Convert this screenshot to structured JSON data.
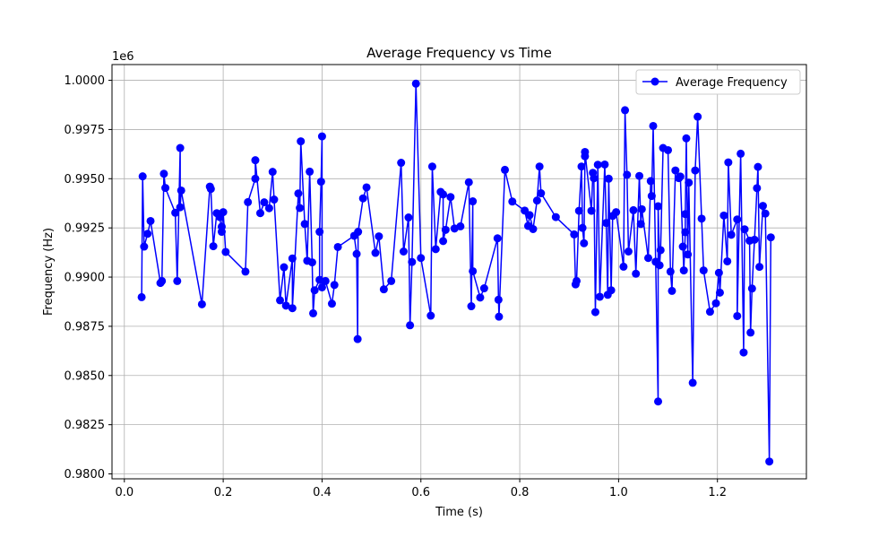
{
  "chart_data": {
    "type": "line",
    "title": "Average Frequency vs Time",
    "xlabel": "Time (s)",
    "ylabel": "Frequency (Hz)",
    "y_offset_label": "1e6",
    "xlim": [
      -0.025,
      1.38
    ],
    "ylim": [
      979750,
      1000800
    ],
    "x_ticks": [
      0.0,
      0.2,
      0.4,
      0.6,
      0.8,
      1.0,
      1.2
    ],
    "x_tick_labels": [
      "0.0",
      "0.2",
      "0.4",
      "0.6",
      "0.8",
      "1.0",
      "1.2"
    ],
    "y_ticks": [
      980000,
      982500,
      985000,
      987500,
      990000,
      992500,
      995000,
      997500,
      1000000
    ],
    "y_tick_labels": [
      "0.9800",
      "0.9825",
      "0.9850",
      "0.9875",
      "0.9900",
      "0.9925",
      "0.9950",
      "0.9975",
      "1.0000"
    ],
    "grid": true,
    "legend_position": "top-right",
    "series": [
      {
        "name": "Average Frequency",
        "color": "#0000ff",
        "marker": "circle",
        "points": [
          [
            0.035,
            988980
          ],
          [
            0.037,
            995120
          ],
          [
            0.04,
            991550
          ],
          [
            0.047,
            992200
          ],
          [
            0.053,
            992850
          ],
          [
            0.073,
            989700
          ],
          [
            0.076,
            989800
          ],
          [
            0.08,
            995250
          ],
          [
            0.083,
            994530
          ],
          [
            0.103,
            993270
          ],
          [
            0.107,
            989800
          ],
          [
            0.113,
            996560
          ],
          [
            0.113,
            993550
          ],
          [
            0.115,
            994400
          ],
          [
            0.157,
            988620
          ],
          [
            0.173,
            994600
          ],
          [
            0.175,
            994480
          ],
          [
            0.18,
            991570
          ],
          [
            0.187,
            993250
          ],
          [
            0.193,
            993050
          ],
          [
            0.197,
            992300
          ],
          [
            0.197,
            992560
          ],
          [
            0.2,
            993300
          ],
          [
            0.205,
            991280
          ],
          [
            0.245,
            990280
          ],
          [
            0.25,
            993810
          ],
          [
            0.265,
            995000
          ],
          [
            0.265,
            995940
          ],
          [
            0.275,
            993250
          ],
          [
            0.283,
            993800
          ],
          [
            0.293,
            993500
          ],
          [
            0.3,
            995350
          ],
          [
            0.303,
            993940
          ],
          [
            0.315,
            988820
          ],
          [
            0.323,
            990500
          ],
          [
            0.327,
            988550
          ],
          [
            0.34,
            990950
          ],
          [
            0.34,
            988420
          ],
          [
            0.352,
            994250
          ],
          [
            0.355,
            993510
          ],
          [
            0.357,
            996900
          ],
          [
            0.365,
            992700
          ],
          [
            0.37,
            990830
          ],
          [
            0.375,
            995360
          ],
          [
            0.38,
            990750
          ],
          [
            0.382,
            988160
          ],
          [
            0.385,
            989330
          ],
          [
            0.395,
            989860
          ],
          [
            0.395,
            992300
          ],
          [
            0.398,
            994850
          ],
          [
            0.4,
            997150
          ],
          [
            0.4,
            989480
          ],
          [
            0.407,
            989800
          ],
          [
            0.42,
            988650
          ],
          [
            0.425,
            989600
          ],
          [
            0.432,
            991530
          ],
          [
            0.465,
            992100
          ],
          [
            0.47,
            991180
          ],
          [
            0.472,
            986850
          ],
          [
            0.473,
            992300
          ],
          [
            0.483,
            994000
          ],
          [
            0.49,
            994560
          ],
          [
            0.508,
            991230
          ],
          [
            0.515,
            992070
          ],
          [
            0.525,
            989380
          ],
          [
            0.54,
            989800
          ],
          [
            0.56,
            995810
          ],
          [
            0.565,
            991300
          ],
          [
            0.575,
            993030
          ],
          [
            0.578,
            987550
          ],
          [
            0.582,
            990770
          ],
          [
            0.59,
            999830
          ],
          [
            0.6,
            990970
          ],
          [
            0.62,
            988040
          ],
          [
            0.623,
            995620
          ],
          [
            0.63,
            991420
          ],
          [
            0.64,
            994330
          ],
          [
            0.645,
            994200
          ],
          [
            0.645,
            991830
          ],
          [
            0.65,
            992400
          ],
          [
            0.66,
            994070
          ],
          [
            0.668,
            992470
          ],
          [
            0.68,
            992580
          ],
          [
            0.697,
            994820
          ],
          [
            0.702,
            988520
          ],
          [
            0.705,
            993850
          ],
          [
            0.705,
            990300
          ],
          [
            0.72,
            988960
          ],
          [
            0.728,
            989430
          ],
          [
            0.755,
            991970
          ],
          [
            0.757,
            988850
          ],
          [
            0.758,
            987990
          ],
          [
            0.77,
            995450
          ],
          [
            0.785,
            993840
          ],
          [
            0.81,
            993380
          ],
          [
            0.817,
            992600
          ],
          [
            0.82,
            993150
          ],
          [
            0.827,
            992440
          ],
          [
            0.835,
            993890
          ],
          [
            0.84,
            995620
          ],
          [
            0.843,
            994260
          ],
          [
            0.873,
            993050
          ],
          [
            0.91,
            992170
          ],
          [
            0.913,
            989630
          ],
          [
            0.915,
            989800
          ],
          [
            0.92,
            993370
          ],
          [
            0.925,
            995620
          ],
          [
            0.927,
            992500
          ],
          [
            0.93,
            991720
          ],
          [
            0.932,
            996140
          ],
          [
            0.932,
            996360
          ],
          [
            0.945,
            993370
          ],
          [
            0.948,
            995300
          ],
          [
            0.95,
            995020
          ],
          [
            0.953,
            988220
          ],
          [
            0.958,
            995710
          ],
          [
            0.962,
            989000
          ],
          [
            0.972,
            995720
          ],
          [
            0.975,
            992750
          ],
          [
            0.978,
            989100
          ],
          [
            0.98,
            995000
          ],
          [
            0.985,
            989330
          ],
          [
            0.988,
            993110
          ],
          [
            0.995,
            993300
          ],
          [
            1.01,
            990530
          ],
          [
            1.013,
            998480
          ],
          [
            1.017,
            995200
          ],
          [
            1.02,
            991300
          ],
          [
            1.03,
            993400
          ],
          [
            1.035,
            990170
          ],
          [
            1.042,
            995140
          ],
          [
            1.045,
            992700
          ],
          [
            1.047,
            993450
          ],
          [
            1.06,
            990970
          ],
          [
            1.065,
            994880
          ],
          [
            1.067,
            994120
          ],
          [
            1.07,
            997680
          ],
          [
            1.075,
            990780
          ],
          [
            1.08,
            983680
          ],
          [
            1.08,
            993600
          ],
          [
            1.083,
            990600
          ],
          [
            1.085,
            991370
          ],
          [
            1.09,
            996560
          ],
          [
            1.1,
            996450
          ],
          [
            1.105,
            990280
          ],
          [
            1.108,
            989300
          ],
          [
            1.115,
            995420
          ],
          [
            1.122,
            995030
          ],
          [
            1.125,
            995110
          ],
          [
            1.13,
            991550
          ],
          [
            1.132,
            990340
          ],
          [
            1.135,
            992280
          ],
          [
            1.135,
            993200
          ],
          [
            1.137,
            997050
          ],
          [
            1.14,
            991150
          ],
          [
            1.142,
            994800
          ],
          [
            1.15,
            984630
          ],
          [
            1.155,
            995420
          ],
          [
            1.16,
            998150
          ],
          [
            1.168,
            992970
          ],
          [
            1.172,
            990340
          ],
          [
            1.185,
            988240
          ],
          [
            1.197,
            988670
          ],
          [
            1.203,
            990220
          ],
          [
            1.205,
            989210
          ],
          [
            1.213,
            993130
          ],
          [
            1.22,
            990800
          ],
          [
            1.222,
            995830
          ],
          [
            1.228,
            992150
          ],
          [
            1.24,
            992930
          ],
          [
            1.24,
            988020
          ],
          [
            1.247,
            996270
          ],
          [
            1.253,
            986170
          ],
          [
            1.255,
            992430
          ],
          [
            1.265,
            991850
          ],
          [
            1.267,
            987180
          ],
          [
            1.27,
            989420
          ],
          [
            1.275,
            991900
          ],
          [
            1.28,
            994520
          ],
          [
            1.282,
            995600
          ],
          [
            1.285,
            990520
          ],
          [
            1.292,
            993620
          ],
          [
            1.297,
            993230
          ],
          [
            1.305,
            980630
          ],
          [
            1.308,
            992020
          ]
        ]
      }
    ]
  }
}
